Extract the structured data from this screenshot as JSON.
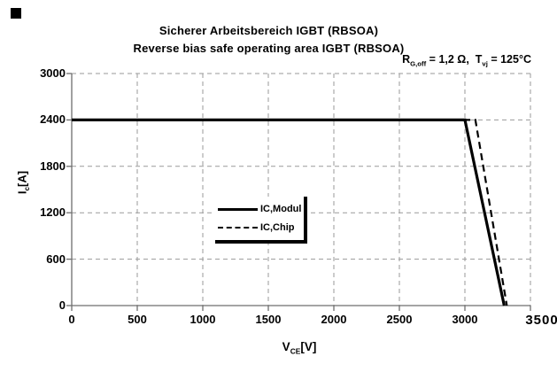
{
  "figure": {
    "title_line1": "Sicherer Arbeitsbereich IGBT (RBSOA)",
    "title_line2": "Reverse bias safe operating area IGBT (RBSOA)",
    "conditions": {
      "r_base": "R",
      "r_sub": "G,off",
      "r_rest": " = 1,2 Ω,  ",
      "t_base": "T",
      "t_sub": "vj",
      "t_rest": " = 125°C"
    },
    "axis_labels": {
      "y_base": "I",
      "y_sub": "c",
      "y_unit": "[A]",
      "x_base": "V",
      "x_sub": "CE",
      "x_unit": "[V]"
    }
  },
  "chart_data": {
    "type": "line",
    "title": "Sicherer Arbeitsbereich IGBT (RBSOA)",
    "subtitle": "Reverse bias safe operating area IGBT (RBSOA)",
    "conditions_text": "RG,off = 1,2 Ω, Tvj = 125°C",
    "xlabel": "VCE[V]",
    "ylabel": "Ic[A]",
    "xlim": [
      0,
      3500
    ],
    "ylim": [
      0,
      3000
    ],
    "x_ticks": [
      0,
      500,
      1000,
      1500,
      2000,
      2500,
      3000,
      3500
    ],
    "y_ticks": [
      0,
      600,
      1200,
      1800,
      2400,
      3000
    ],
    "grid": "dashed gray, horizontal and vertical at every tick",
    "legend": {
      "position": "center of plot, white box with thick right and bottom border",
      "entries": [
        {
          "label": "IC,Modul",
          "line": "solid"
        },
        {
          "label": "IC,Chip",
          "line": "dashed"
        }
      ]
    },
    "series": [
      {
        "name": "IC,Modul",
        "style": "solid",
        "points": [
          [
            0,
            2400
          ],
          [
            3000,
            2400
          ],
          [
            3300,
            0
          ]
        ]
      },
      {
        "name": "IC,Chip",
        "style": "dashed",
        "points": [
          [
            0,
            2400
          ],
          [
            3080,
            2400
          ],
          [
            3320,
            0
          ]
        ]
      }
    ],
    "colors": {
      "line": "#000000",
      "grid": "#9a9a9a",
      "axis": "#6e6e6e",
      "text": "#000000",
      "background": "#ffffff"
    }
  }
}
